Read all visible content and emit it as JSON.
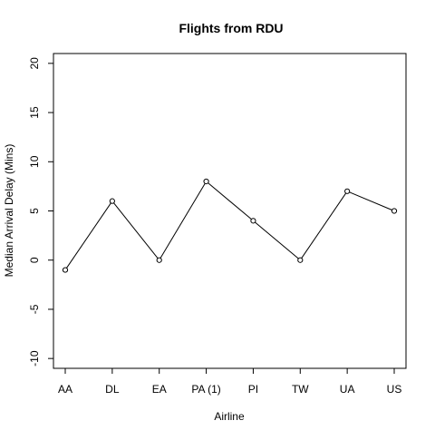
{
  "chart_data": {
    "type": "line",
    "title": "Flights from RDU",
    "xlabel": "Airline",
    "ylabel": "Median Arrival Delay (Mins)",
    "categories": [
      "AA",
      "DL",
      "EA",
      "PA (1)",
      "PI",
      "TW",
      "UA",
      "US"
    ],
    "values": [
      -1,
      6,
      0,
      8,
      4,
      0,
      7,
      5
    ],
    "ylim": [
      -11,
      21
    ],
    "yticks": [
      -10,
      -5,
      0,
      5,
      10,
      15,
      20
    ],
    "ytick_labels": [
      "-10",
      "-5",
      "0",
      "5",
      "10",
      "15",
      "20"
    ],
    "grid": false,
    "markers": "open-circle",
    "line_color": "#000000"
  }
}
